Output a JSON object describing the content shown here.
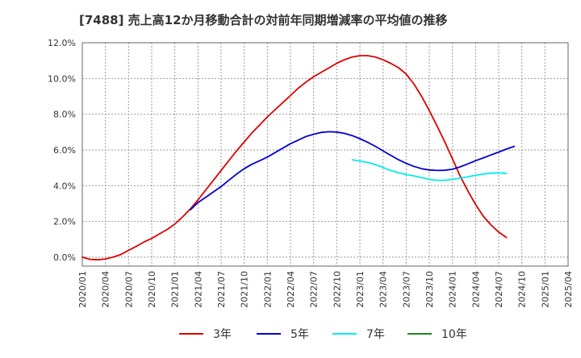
{
  "chart_data": {
    "type": "line",
    "title": "[7488]  売上高12か月移動合計の対前年同期増減率の平均値の推移",
    "xlabel": "",
    "ylabel": "",
    "ylim": [
      -0.5,
      12.0
    ],
    "yticks": [
      0.0,
      2.0,
      4.0,
      6.0,
      8.0,
      10.0,
      12.0
    ],
    "ytick_labels": [
      "0.0%",
      "2.0%",
      "4.0%",
      "6.0%",
      "8.0%",
      "10.0%",
      "12.0%"
    ],
    "x_categories": [
      "2020/01",
      "2020/04",
      "2020/07",
      "2020/10",
      "2021/01",
      "2021/04",
      "2021/07",
      "2021/10",
      "2022/01",
      "2022/04",
      "2022/07",
      "2022/10",
      "2023/01",
      "2023/04",
      "2023/07",
      "2023/10",
      "2024/01",
      "2024/04",
      "2024/07",
      "2024/10",
      "2025/01",
      "2025/04"
    ],
    "grid": true,
    "legend_position": "bottom",
    "series": [
      {
        "name": "3年",
        "color": "#dd0000",
        "points": [
          [
            0,
            0.0
          ],
          [
            0.33,
            -0.12
          ],
          [
            0.67,
            -0.15
          ],
          [
            1,
            -0.1
          ],
          [
            1.33,
            0.0
          ],
          [
            1.67,
            0.15
          ],
          [
            2,
            0.38
          ],
          [
            2.33,
            0.6
          ],
          [
            2.67,
            0.85
          ],
          [
            3,
            1.05
          ],
          [
            3.33,
            1.3
          ],
          [
            3.67,
            1.55
          ],
          [
            4,
            1.85
          ],
          [
            4.33,
            2.25
          ],
          [
            4.67,
            2.7
          ],
          [
            5,
            3.2
          ],
          [
            5.33,
            3.75
          ],
          [
            5.67,
            4.3
          ],
          [
            6,
            4.85
          ],
          [
            6.33,
            5.4
          ],
          [
            6.67,
            5.95
          ],
          [
            7,
            6.45
          ],
          [
            7.33,
            6.95
          ],
          [
            7.67,
            7.4
          ],
          [
            8,
            7.85
          ],
          [
            8.33,
            8.25
          ],
          [
            8.67,
            8.65
          ],
          [
            9,
            9.05
          ],
          [
            9.33,
            9.45
          ],
          [
            9.67,
            9.8
          ],
          [
            10,
            10.1
          ],
          [
            10.33,
            10.35
          ],
          [
            10.67,
            10.6
          ],
          [
            11,
            10.85
          ],
          [
            11.33,
            11.05
          ],
          [
            11.67,
            11.2
          ],
          [
            12,
            11.28
          ],
          [
            12.33,
            11.28
          ],
          [
            12.67,
            11.2
          ],
          [
            13,
            11.05
          ],
          [
            13.33,
            10.85
          ],
          [
            13.67,
            10.6
          ],
          [
            14,
            10.25
          ],
          [
            14.33,
            9.7
          ],
          [
            14.67,
            9.0
          ],
          [
            15,
            8.2
          ],
          [
            15.33,
            7.35
          ],
          [
            15.67,
            6.45
          ],
          [
            16,
            5.5
          ],
          [
            16.33,
            4.55
          ],
          [
            16.67,
            3.7
          ],
          [
            17,
            2.95
          ],
          [
            17.33,
            2.3
          ],
          [
            17.67,
            1.8
          ],
          [
            18,
            1.4
          ],
          [
            18.33,
            1.1
          ]
        ]
      },
      {
        "name": "5年",
        "color": "#0000cc",
        "points": [
          [
            4.67,
            2.65
          ],
          [
            5,
            3.05
          ],
          [
            5.33,
            3.35
          ],
          [
            5.67,
            3.65
          ],
          [
            6,
            3.95
          ],
          [
            6.33,
            4.3
          ],
          [
            6.67,
            4.65
          ],
          [
            7,
            4.95
          ],
          [
            7.33,
            5.2
          ],
          [
            7.67,
            5.4
          ],
          [
            8,
            5.6
          ],
          [
            8.33,
            5.85
          ],
          [
            8.67,
            6.1
          ],
          [
            9,
            6.35
          ],
          [
            9.33,
            6.55
          ],
          [
            9.67,
            6.75
          ],
          [
            10,
            6.88
          ],
          [
            10.33,
            6.98
          ],
          [
            10.67,
            7.02
          ],
          [
            11,
            7.0
          ],
          [
            11.33,
            6.93
          ],
          [
            11.67,
            6.8
          ],
          [
            12,
            6.63
          ],
          [
            12.33,
            6.43
          ],
          [
            12.67,
            6.2
          ],
          [
            13,
            5.95
          ],
          [
            13.33,
            5.7
          ],
          [
            13.67,
            5.45
          ],
          [
            14,
            5.25
          ],
          [
            14.33,
            5.08
          ],
          [
            14.67,
            4.95
          ],
          [
            15,
            4.88
          ],
          [
            15.33,
            4.85
          ],
          [
            15.67,
            4.86
          ],
          [
            16,
            4.92
          ],
          [
            16.33,
            5.05
          ],
          [
            16.67,
            5.22
          ],
          [
            17,
            5.4
          ],
          [
            17.33,
            5.55
          ],
          [
            17.67,
            5.72
          ],
          [
            18,
            5.88
          ],
          [
            18.33,
            6.05
          ],
          [
            18.67,
            6.2
          ]
        ]
      },
      {
        "name": "7年",
        "color": "#00eeee",
        "points": [
          [
            11.67,
            5.45
          ],
          [
            12,
            5.38
          ],
          [
            12.33,
            5.3
          ],
          [
            12.67,
            5.18
          ],
          [
            13,
            5.02
          ],
          [
            13.33,
            4.85
          ],
          [
            13.67,
            4.72
          ],
          [
            14,
            4.62
          ],
          [
            14.33,
            4.55
          ],
          [
            14.67,
            4.45
          ],
          [
            15,
            4.35
          ],
          [
            15.33,
            4.3
          ],
          [
            15.67,
            4.3
          ],
          [
            16,
            4.35
          ],
          [
            16.33,
            4.42
          ],
          [
            16.67,
            4.5
          ],
          [
            17,
            4.58
          ],
          [
            17.33,
            4.65
          ],
          [
            17.67,
            4.7
          ],
          [
            18,
            4.72
          ],
          [
            18.33,
            4.68
          ]
        ]
      },
      {
        "name": "10年",
        "color": "#228822",
        "points": []
      }
    ]
  }
}
